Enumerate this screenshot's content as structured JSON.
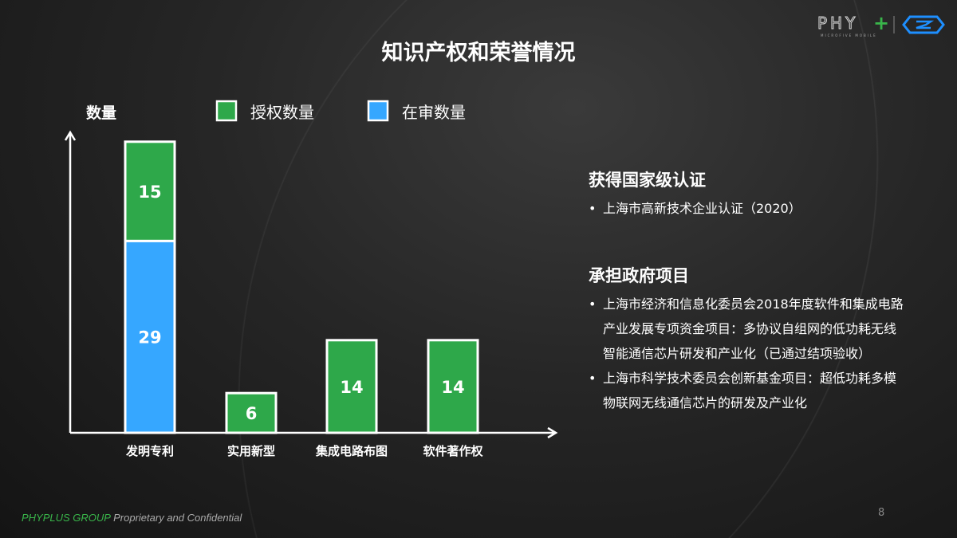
{
  "title": "知识产权和荣誉情况",
  "logo": {
    "text": "PHY+",
    "subtext": "MICROFIVE MOBILE"
  },
  "colors": {
    "granted": "#2ea84a",
    "pending": "#36a7ff",
    "accent_green": "#39b54a"
  },
  "chart_data": {
    "type": "bar",
    "stacked": true,
    "ylabel": "数量",
    "categories": [
      "发明专利",
      "实用新型",
      "集成电路布图",
      "软件著作权"
    ],
    "series": [
      {
        "name": "在审数量",
        "values": [
          29,
          0,
          0,
          0
        ]
      },
      {
        "name": "授权数量",
        "values": [
          15,
          6,
          14,
          14
        ]
      }
    ],
    "legend": "top",
    "grid": false
  },
  "sections": [
    {
      "heading": "获得国家级认证",
      "items": [
        "上海市高新技术企业认证（2020）"
      ]
    },
    {
      "heading": "承担政府项目",
      "items": [
        "上海市经济和信息化委员会2018年度软件和集成电路产业发展专项资金项目：多协议自组网的低功耗无线智能通信芯片研发和产业化（已通过结项验收）",
        "上海市科学技术委员会创新基金项目：超低功耗多模物联网无线通信芯片的研发及产业化"
      ]
    }
  ],
  "footer": {
    "company": "PHYPLUS GROUP",
    "note": "Proprietary and Confidential"
  },
  "page_number": "8"
}
